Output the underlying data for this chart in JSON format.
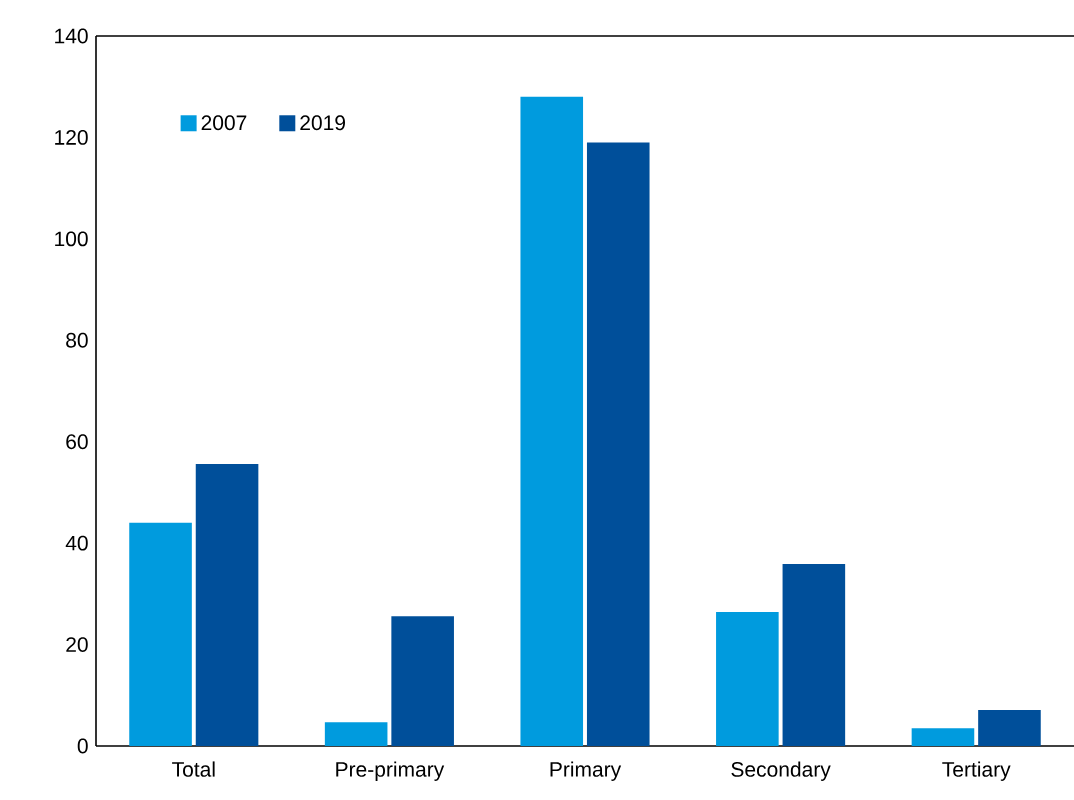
{
  "chart_data": {
    "type": "bar",
    "categories": [
      "Total",
      "Pre-primary",
      "Primary",
      "Secondary",
      "Tertiary"
    ],
    "series": [
      {
        "name": "2007",
        "color": "#009bde",
        "values": [
          44,
          4.7,
          128,
          26.4,
          3.5
        ]
      },
      {
        "name": "2019",
        "color": "#004f9a",
        "values": [
          55.6,
          25.6,
          119,
          35.9,
          7.1
        ]
      }
    ],
    "ylim": [
      0,
      140
    ],
    "yticks": [
      0,
      20,
      40,
      60,
      80,
      100,
      120,
      140
    ],
    "grid": false,
    "legend": "top left"
  }
}
